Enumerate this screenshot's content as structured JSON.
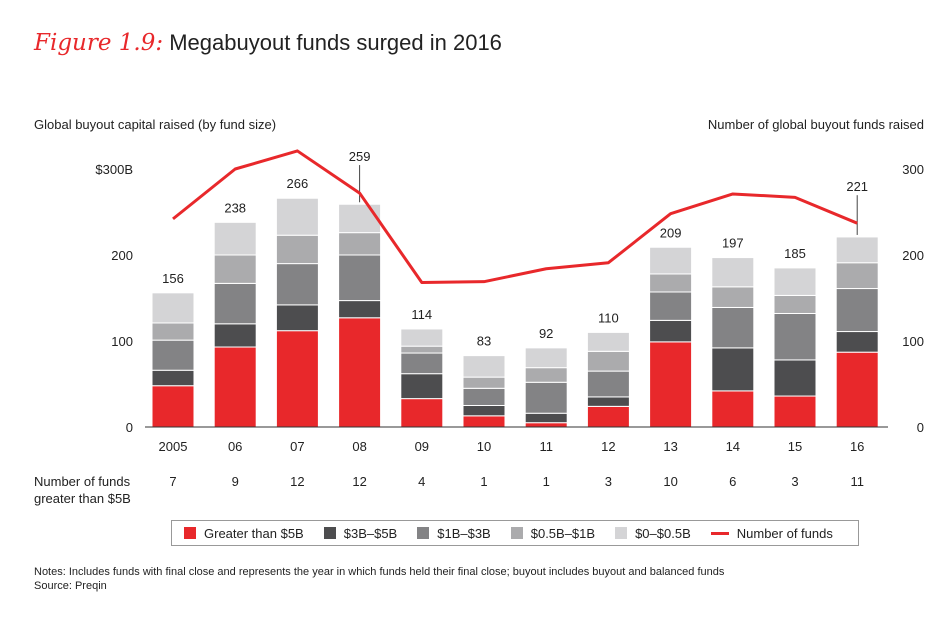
{
  "title": {
    "figure_label": "Figure 1.9:",
    "text": "Megabuyout funds surged in 2016"
  },
  "chart_data": {
    "type": "stacked-bar-with-line",
    "title": "Megabuyout funds surged in 2016",
    "ylabel_left": "Global buyout capital raised (by fund size)",
    "ylabel_right": "Number of global buyout funds raised",
    "left_ticks": [
      "0",
      "100",
      "200",
      "$300B"
    ],
    "right_ticks": [
      "0",
      "100",
      "200",
      "300"
    ],
    "left_ylim": [
      0,
      300
    ],
    "right_ylim": [
      0,
      300
    ],
    "categories": [
      "2005",
      "06",
      "07",
      "08",
      "09",
      "10",
      "11",
      "12",
      "13",
      "14",
      "15",
      "16"
    ],
    "totals": [
      156,
      238,
      266,
      259,
      114,
      83,
      92,
      110,
      209,
      197,
      185,
      221
    ],
    "series": [
      {
        "name": "Greater than $5B",
        "color": "#e8282b",
        "values": [
          48,
          93,
          112,
          127,
          33,
          13,
          5,
          24,
          99,
          42,
          36,
          87
        ]
      },
      {
        "name": "$3B–$5B",
        "color": "#4d4d4f",
        "values": [
          18,
          27,
          30,
          20,
          29,
          12,
          11,
          11,
          25,
          50,
          42,
          24
        ]
      },
      {
        "name": "$1B–$3B",
        "color": "#838385",
        "values": [
          35,
          47,
          48,
          53,
          24,
          20,
          36,
          30,
          33,
          47,
          54,
          50
        ]
      },
      {
        "name": "$0.5B–$1B",
        "color": "#ababad",
        "values": [
          20,
          33,
          33,
          26,
          8,
          13,
          17,
          23,
          21,
          24,
          21,
          30
        ]
      },
      {
        "name": "$0–$0.5B",
        "color": "#d4d4d6",
        "values": [
          35,
          38,
          43,
          33,
          20,
          25,
          23,
          22,
          31,
          34,
          32,
          30
        ]
      }
    ],
    "line_series": {
      "name": "Number of funds",
      "color": "#e8282b",
      "values": [
        242,
        300,
        321,
        272,
        168,
        169,
        184,
        191,
        248,
        271,
        267,
        237
      ]
    },
    "funds_greater_than_5b": {
      "label_line1": "Number of funds",
      "label_line2": "greater than $5B",
      "values": [
        "7",
        "9",
        "12",
        "12",
        "4",
        "1",
        "1",
        "3",
        "10",
        "6",
        "3",
        "11"
      ]
    }
  },
  "legend": [
    {
      "label": "Greater than $5B",
      "color": "#e8282b",
      "kind": "swatch"
    },
    {
      "label": "$3B–$5B",
      "color": "#4d4d4f",
      "kind": "swatch"
    },
    {
      "label": "$1B–$3B",
      "color": "#838385",
      "kind": "swatch"
    },
    {
      "label": "$0.5B–$1B",
      "color": "#ababad",
      "kind": "swatch"
    },
    {
      "label": "$0–$0.5B",
      "color": "#d4d4d6",
      "kind": "swatch"
    },
    {
      "label": "Number of funds",
      "color": "#e8282b",
      "kind": "line"
    }
  ],
  "notes": {
    "line1": "Notes: Includes funds with final close and represents the year in which funds held their final close; buyout includes buyout and balanced funds",
    "line2": "Source: Preqin"
  }
}
